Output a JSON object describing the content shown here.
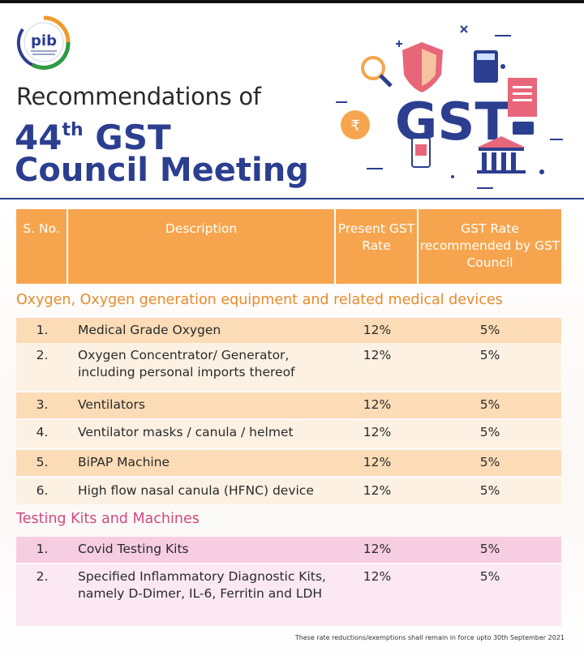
{
  "header": {
    "logo_text": "pib",
    "title_line1": "Recommendations of",
    "title_number": "44",
    "title_sup": "th",
    "title_gst": " GST",
    "title_line3": "Council Meeting",
    "illustration_text": "GST"
  },
  "table": {
    "columns": [
      "S. No.",
      "Description",
      "Present GST Rate",
      "GST Rate recommended by GST Council"
    ],
    "sections": [
      {
        "title": "Oxygen, Oxygen generation equipment and related medical devices",
        "rows": [
          {
            "sno": "1.",
            "description": "Medical Grade Oxygen",
            "present": "12%",
            "recommended": "5%"
          },
          {
            "sno": "2.",
            "description": "Oxygen Concentrator/ Generator, including personal imports thereof",
            "present": "12%",
            "recommended": "5%"
          },
          {
            "sno": "3.",
            "description": "Ventilators",
            "present": "12%",
            "recommended": "5%"
          },
          {
            "sno": "4.",
            "description": "Ventilator masks / canula / helmet",
            "present": "12%",
            "recommended": "5%"
          },
          {
            "sno": "5.",
            "description": "BiPAP Machine",
            "present": "12%",
            "recommended": "5%"
          },
          {
            "sno": "6.",
            "description": "High flow nasal canula (HFNC) device",
            "present": "12%",
            "recommended": "5%"
          }
        ]
      },
      {
        "title": "Testing Kits and Machines",
        "rows": [
          {
            "sno": "1.",
            "description": "Covid Testing Kits",
            "present": "12%",
            "recommended": "5%"
          },
          {
            "sno": "2.",
            "description": "Specified Inflammatory Diagnostic Kits, namely D-Dimer, IL-6, Ferritin and LDH",
            "present": "12%",
            "recommended": "5%"
          }
        ]
      }
    ],
    "footnote": "These rate reductions/exemptions shall remain in force upto 30th September 2021"
  },
  "colors": {
    "header_blue": "#2c3e8f",
    "orange_header": "#f6a54e",
    "orange_section": "#e78b2c",
    "pink_section": "#d4477f"
  }
}
